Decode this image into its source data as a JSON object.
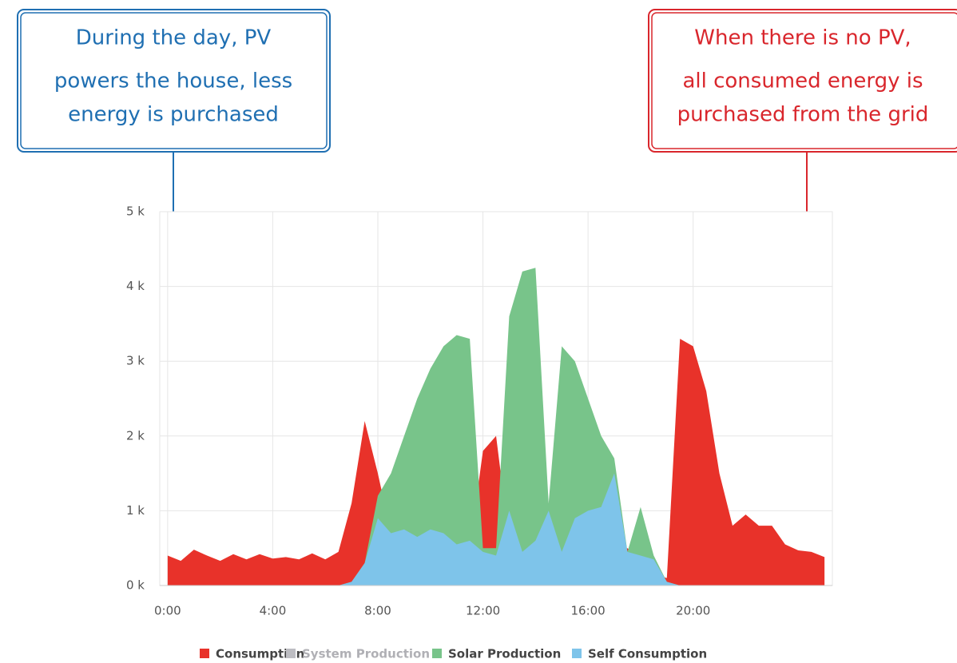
{
  "chart_data": {
    "type": "area",
    "x": [
      0,
      0.5,
      1,
      1.5,
      2,
      2.5,
      3,
      3.5,
      4,
      4.5,
      5,
      5.5,
      6,
      6.5,
      7,
      7.5,
      8,
      8.5,
      9,
      9.5,
      10,
      10.5,
      11,
      11.5,
      12,
      12.5,
      13,
      13.5,
      14,
      14.5,
      15,
      15.5,
      16,
      16.5,
      17,
      17.5,
      18,
      18.5,
      19,
      19.5,
      20,
      20.5,
      21,
      21.5,
      22,
      22.5,
      23,
      23.5,
      24,
      24.5,
      25
    ],
    "xlim": [
      -0.3,
      25.3
    ],
    "xticks": [
      {
        "value": 0,
        "label": "0:00"
      },
      {
        "value": 4,
        "label": "4:00"
      },
      {
        "value": 8,
        "label": "8:00"
      },
      {
        "value": 12,
        "label": "12:00"
      },
      {
        "value": 16,
        "label": "16:00"
      },
      {
        "value": 20,
        "label": "20:00"
      }
    ],
    "ylim": [
      0,
      5000
    ],
    "yticks": [
      {
        "value": 0,
        "label": "0 k"
      },
      {
        "value": 1000,
        "label": "1 k"
      },
      {
        "value": 2000,
        "label": "2 k"
      },
      {
        "value": 3000,
        "label": "3 k"
      },
      {
        "value": 4000,
        "label": "4 k"
      },
      {
        "value": 5000,
        "label": "5 k"
      }
    ],
    "grid": true,
    "series": [
      {
        "name": "Consumption",
        "color": "#e8322a",
        "values": [
          400,
          330,
          480,
          400,
          330,
          420,
          350,
          420,
          360,
          380,
          350,
          430,
          350,
          450,
          1100,
          2200,
          1500,
          700,
          750,
          700,
          750,
          700,
          600,
          500,
          1800,
          2000,
          600,
          500,
          600,
          600,
          900,
          900,
          1100,
          700,
          450,
          500,
          350,
          150,
          100,
          3300,
          3200,
          2600,
          1500,
          800,
          950,
          800,
          800,
          550,
          470,
          450,
          380
        ]
      },
      {
        "name": "System Production",
        "color": "#bdbdc2",
        "values": [
          0,
          0,
          0,
          0,
          0,
          0,
          0,
          0,
          0,
          0,
          0,
          0,
          0,
          0,
          0,
          0,
          0,
          0,
          0,
          0,
          0,
          0,
          0,
          0,
          0,
          0,
          0,
          0,
          0,
          0,
          0,
          0,
          0,
          0,
          0,
          0,
          0,
          0,
          0,
          0,
          0,
          0,
          0,
          0,
          0,
          0,
          0,
          0,
          0,
          0,
          0
        ]
      },
      {
        "name": "Solar Production",
        "color": "#78c48a",
        "values": [
          0,
          0,
          0,
          0,
          0,
          0,
          0,
          0,
          0,
          0,
          0,
          0,
          0,
          0,
          50,
          300,
          1200,
          1500,
          2000,
          2500,
          2900,
          3200,
          3350,
          3300,
          500,
          500,
          3600,
          4200,
          4250,
          1100,
          3200,
          3000,
          2500,
          2000,
          1700,
          450,
          1050,
          400,
          50,
          0,
          0,
          0,
          0,
          0,
          0,
          0,
          0,
          0,
          0,
          0,
          0
        ]
      },
      {
        "name": "Self Consumption",
        "color": "#7ec4ea",
        "values": [
          0,
          0,
          0,
          0,
          0,
          0,
          0,
          0,
          0,
          0,
          0,
          0,
          0,
          0,
          50,
          300,
          900,
          700,
          750,
          650,
          750,
          700,
          550,
          600,
          450,
          400,
          1000,
          450,
          600,
          1000,
          450,
          900,
          1000,
          1050,
          1500,
          450,
          400,
          350,
          50,
          0,
          0,
          0,
          0,
          0,
          0,
          0,
          0,
          0,
          0,
          0,
          0
        ]
      }
    ],
    "annotations": [
      {
        "lines": [
          "During the day, PV",
          "powers the house, less",
          "energy is purchased"
        ]
      },
      {
        "lines": [
          "When there is no PV,",
          "all consumed energy is",
          "purchased from the grid"
        ]
      }
    ]
  }
}
